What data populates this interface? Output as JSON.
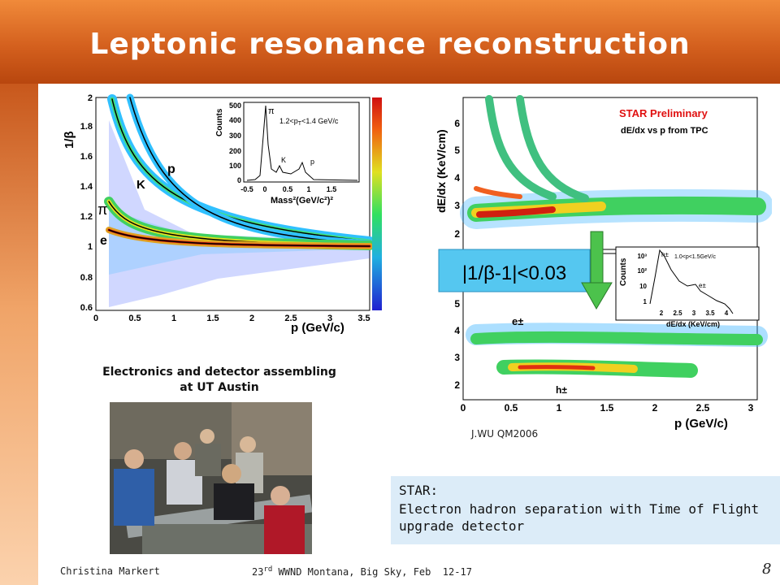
{
  "slide": {
    "title": "Leptonic resonance reconstruction",
    "colors": {
      "header_top": "#f08a3a",
      "header_bottom": "#b8460e",
      "accent_arrow": "#4cc24c",
      "note_box": "#dcecf8"
    }
  },
  "left_plot": {
    "y_label": "1/β",
    "x_label": "p (GeV/c)",
    "x_ticks": [
      "0",
      "0.5",
      "1",
      "1.5",
      "2",
      "2.5",
      "3",
      "3.5"
    ],
    "y_ticks": [
      "0.6",
      "0.8",
      "1",
      "1.2",
      "1.4",
      "1.6",
      "1.8",
      "2"
    ],
    "particle_labels": {
      "pion": "π",
      "kaon": "K",
      "proton": "p",
      "electron": "e"
    },
    "inset": {
      "y_label": "Counts",
      "x_label": "Mass²(GeV/c²)²",
      "range_label": "1.2<p",
      "range_sub": "T",
      "range_label_tail": "<1.4 GeV/c",
      "y_ticks": [
        "0",
        "100",
        "200",
        "300",
        "400",
        "500"
      ],
      "x_ticks": [
        "-0.5",
        "0",
        "0.5",
        "1",
        "1.5"
      ],
      "peak_labels": {
        "pion": "π",
        "kaon": "K",
        "proton": "p"
      }
    }
  },
  "right_plot": {
    "y_label": "dE/dx (KeV/cm)",
    "x_label": "p (GeV/c)",
    "preliminary": "STAR Preliminary",
    "subtitle": "dE/dx vs p from TPC",
    "x_ticks": [
      "0",
      "0.5",
      "1",
      "1.5",
      "2",
      "2.5",
      "3"
    ],
    "upper_y_ticks": [
      "2",
      "3",
      "4",
      "5",
      "6"
    ],
    "lower_y_ticks": [
      "2",
      "3",
      "4",
      "5"
    ],
    "cut_label": "|1/β-1|<0.03",
    "electron_label": "e±",
    "hadron_label": "h±",
    "inset": {
      "y_label": "Counts",
      "x_label": "dE/dx (KeV/cm)",
      "range_label": "1.0<p<1.5GeV/c",
      "y_ticks": [
        "1",
        "10",
        "10²",
        "10³"
      ],
      "x_ticks": [
        "2",
        "2.5",
        "3",
        "3.5",
        "4"
      ],
      "peak_labels": {
        "hadron": "h±",
        "electron": "e±"
      }
    }
  },
  "photo_caption": {
    "line1": "Electronics and detector assembling",
    "line2": "at UT Austin"
  },
  "credit": "J.WU QM2006",
  "note": {
    "line1": "STAR:",
    "line2": "Electron hadron separation with Time of Flight upgrade detector"
  },
  "footer": {
    "author": "Christina Markert",
    "conference_num": "23",
    "conference_sup": "rd",
    "conference_tail": " WWND Montana, Big Sky, Feb  12-17",
    "page": "8"
  }
}
